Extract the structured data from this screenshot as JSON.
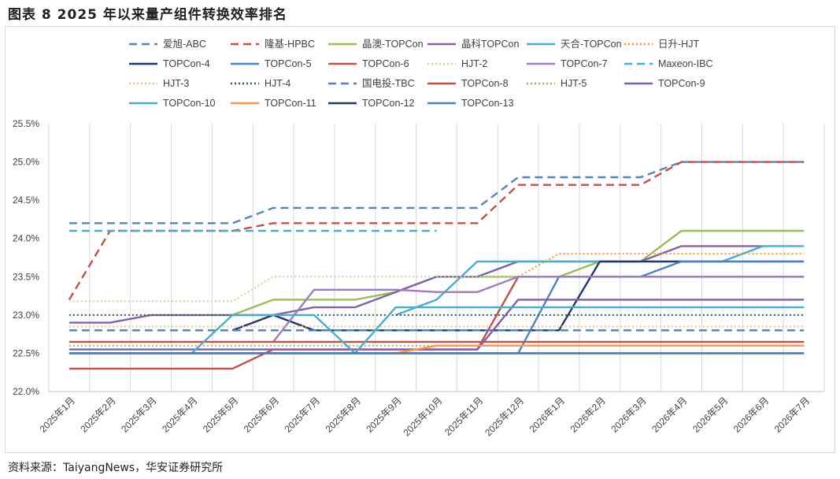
{
  "figure": {
    "title": "图表 8 2025 年以来量产组件转换效率排名",
    "source": "资料来源：TaiyangNews，华安证券研究所"
  },
  "chart_data": {
    "type": "line",
    "x": [
      "2025年1月",
      "2025年2月",
      "2025年3月",
      "2025年4月",
      "2025年5月",
      "2025年6月",
      "2025年7月",
      "2025年8月",
      "2025年9月",
      "2025年10月",
      "2025年11月",
      "2025年12月",
      "2026年1月",
      "2026年2月",
      "2026年3月",
      "2026年4月",
      "2026年5月",
      "2026年6月",
      "2026年7月"
    ],
    "ylim": [
      22.0,
      25.5
    ],
    "yticks": [
      22.0,
      22.5,
      23.0,
      23.5,
      24.0,
      24.5,
      25.0,
      25.5
    ],
    "ytick_labels": [
      "22.0%",
      "22.5%",
      "23.0%",
      "23.5%",
      "24.0%",
      "24.5%",
      "25.0%",
      "25.5%"
    ],
    "grid": "vertical",
    "legend_position": "top",
    "series": [
      {
        "name": "爱旭-ABC",
        "color": "#5b84b1",
        "dash": "dashed",
        "values": [
          24.2,
          24.2,
          24.2,
          24.2,
          24.2,
          24.4,
          24.4,
          24.4,
          24.4,
          24.4,
          24.4,
          24.8,
          24.8,
          24.8,
          24.8,
          25.0,
          25.0,
          25.0,
          25.0
        ]
      },
      {
        "name": "隆基-HPBC",
        "color": "#c0504d",
        "dash": "dashed",
        "values": [
          23.2,
          24.1,
          24.1,
          24.1,
          24.1,
          24.2,
          24.2,
          24.2,
          24.2,
          24.2,
          24.2,
          24.7,
          24.7,
          24.7,
          24.7,
          25.0,
          25.0,
          25.0,
          25.0
        ]
      },
      {
        "name": "晶澳-TOPCon",
        "color": "#9bbb59",
        "dash": "solid",
        "values": [
          null,
          null,
          null,
          null,
          23.0,
          23.2,
          23.2,
          23.2,
          23.3,
          23.5,
          23.5,
          23.5,
          23.5,
          23.7,
          23.7,
          24.1,
          24.1,
          24.1,
          24.1
        ]
      },
      {
        "name": "晶科TOPCon",
        "color": "#8064a2",
        "dash": "solid",
        "values": [
          22.9,
          22.9,
          23.0,
          23.0,
          23.0,
          23.0,
          23.1,
          23.1,
          23.3,
          23.5,
          23.5,
          23.7,
          23.7,
          23.7,
          23.7,
          23.9,
          23.9,
          23.9,
          null
        ]
      },
      {
        "name": "天合-TOPCon",
        "color": "#4bacc6",
        "dash": "solid",
        "values": [
          null,
          null,
          null,
          null,
          null,
          null,
          null,
          null,
          23.0,
          23.2,
          23.7,
          23.7,
          23.7,
          23.7,
          23.7,
          23.7,
          23.7,
          23.9,
          23.9
        ]
      },
      {
        "name": "日升-HJT",
        "color": "#f79646",
        "dash": "dotted",
        "values": [
          null,
          null,
          null,
          null,
          null,
          null,
          null,
          null,
          null,
          null,
          null,
          23.5,
          23.8,
          23.8,
          23.8,
          23.8,
          23.8,
          23.8,
          23.8
        ]
      },
      {
        "name": "TOPCon-4",
        "color": "#1f3864",
        "dash": "solid",
        "values": [
          null,
          null,
          null,
          null,
          22.8,
          23.0,
          22.8,
          22.8,
          22.8,
          22.8,
          22.8,
          22.8,
          22.8,
          23.7,
          23.7,
          23.7,
          23.7,
          23.7,
          23.7
        ]
      },
      {
        "name": "TOPCon-5",
        "color": "#4f81bd",
        "dash": "solid",
        "values": [
          22.5,
          22.5,
          22.5,
          22.5,
          22.5,
          22.5,
          22.5,
          22.5,
          22.5,
          22.5,
          22.5,
          22.5,
          23.5,
          23.5,
          23.5,
          23.7,
          23.7,
          23.7,
          23.7
        ]
      },
      {
        "name": "TOPCon-6",
        "color": "#c0504d",
        "dash": "solid",
        "values": [
          22.3,
          22.3,
          22.3,
          22.3,
          22.3,
          22.55,
          22.55,
          22.55,
          22.55,
          22.55,
          22.55,
          23.5,
          23.5,
          23.5,
          23.5,
          23.5,
          23.5,
          23.5,
          23.5
        ]
      },
      {
        "name": "HJT-2",
        "color": "#c4d79b",
        "dash": "dotted",
        "values": [
          23.18,
          23.18,
          23.18,
          23.18,
          23.18,
          23.5,
          23.5,
          23.5,
          23.5,
          23.5,
          23.5,
          23.5,
          23.5,
          null,
          null,
          null,
          null,
          null,
          null
        ]
      },
      {
        "name": "TOPCon-7",
        "color": "#9d7dbb",
        "dash": "solid",
        "values": [
          null,
          null,
          null,
          null,
          null,
          22.65,
          23.33,
          23.33,
          23.33,
          23.3,
          23.3,
          23.5,
          23.5,
          23.5,
          23.5,
          23.5,
          23.5,
          23.5,
          23.5
        ]
      },
      {
        "name": "Maxeon-IBC",
        "color": "#4bacc6",
        "dash": "dashed",
        "values": [
          24.1,
          24.1,
          24.1,
          24.1,
          24.1,
          24.1,
          24.1,
          24.1,
          24.1,
          24.1,
          null,
          null,
          null,
          null,
          null,
          null,
          null,
          null,
          null
        ]
      },
      {
        "name": "HJT-3",
        "color": "#fabf8f",
        "dash": "dotted",
        "values": [
          22.85,
          22.85,
          22.85,
          22.85,
          22.85,
          22.85,
          22.85,
          22.85,
          22.85,
          22.85,
          22.85,
          22.85,
          22.85,
          22.85,
          22.85,
          22.85,
          22.85,
          22.85,
          22.85
        ]
      },
      {
        "name": "HJT-4",
        "color": "#31594e",
        "dash": "dotted",
        "values": [
          23.0,
          23.0,
          23.0,
          23.0,
          23.0,
          23.0,
          23.0,
          23.0,
          23.0,
          23.0,
          23.0,
          23.0,
          23.0,
          23.0,
          23.0,
          23.0,
          23.0,
          23.0,
          23.0
        ]
      },
      {
        "name": "国电投-TBC",
        "color": "#4f81bd",
        "dash": "dashed",
        "values": [
          22.8,
          22.8,
          22.8,
          22.8,
          22.8,
          22.8,
          22.8,
          22.8,
          22.8,
          22.8,
          22.8,
          22.8,
          22.8,
          22.8,
          22.8,
          22.8,
          22.8,
          22.8,
          22.8
        ]
      },
      {
        "name": "TOPCon-8",
        "color": "#c0504d",
        "dash": "solid",
        "values": [
          22.65,
          22.65,
          22.65,
          22.65,
          22.65,
          22.65,
          22.65,
          22.65,
          22.65,
          22.65,
          22.65,
          22.65,
          22.65,
          22.65,
          22.65,
          22.65,
          22.65,
          22.65,
          22.65
        ]
      },
      {
        "name": "HJT-5",
        "color": "#9bbb59",
        "dash": "dotted",
        "values": [
          22.6,
          22.6,
          22.6,
          22.6,
          22.6,
          22.6,
          22.6,
          22.6,
          22.6,
          22.6,
          22.6,
          22.6,
          22.6,
          22.6,
          22.6,
          22.6,
          22.6,
          22.6,
          22.6
        ]
      },
      {
        "name": "TOPCon-9",
        "color": "#7f5fa8",
        "dash": "solid",
        "values": [
          22.55,
          22.55,
          22.55,
          22.55,
          22.55,
          22.55,
          22.55,
          22.55,
          22.55,
          22.55,
          22.55,
          23.2,
          23.2,
          23.2,
          23.2,
          23.2,
          23.2,
          23.2,
          23.2
        ]
      },
      {
        "name": "TOPCon-10",
        "color": "#4bacc6",
        "dash": "solid",
        "values": [
          null,
          null,
          null,
          22.5,
          23.0,
          23.0,
          23.0,
          22.5,
          23.1,
          23.1,
          23.1,
          23.1,
          23.1,
          23.1,
          23.1,
          23.1,
          23.1,
          23.1,
          23.1
        ]
      },
      {
        "name": "TOPCon-11",
        "color": "#f79646",
        "dash": "solid",
        "values": [
          null,
          null,
          null,
          null,
          null,
          null,
          null,
          null,
          22.5,
          22.6,
          22.6,
          22.6,
          22.6,
          22.6,
          22.6,
          22.6,
          22.6,
          22.6,
          22.6
        ]
      },
      {
        "name": "TOPCon-12",
        "color": "#1f3864",
        "dash": "solid",
        "values": [
          22.5,
          22.5,
          22.5,
          22.5,
          22.5,
          22.5,
          22.5,
          22.5,
          22.5,
          22.5,
          22.5,
          22.5,
          22.5,
          22.5,
          22.5,
          22.5,
          22.5,
          22.5,
          22.5
        ]
      },
      {
        "name": "TOPCon-13",
        "color": "#4a7ebb",
        "dash": "solid",
        "values": [
          22.5,
          22.5,
          22.5,
          22.5,
          22.5,
          22.5,
          22.5,
          22.5,
          22.5,
          22.5,
          22.5,
          22.5,
          22.5,
          22.5,
          22.5,
          22.5,
          22.5,
          22.5,
          22.5
        ]
      }
    ]
  }
}
